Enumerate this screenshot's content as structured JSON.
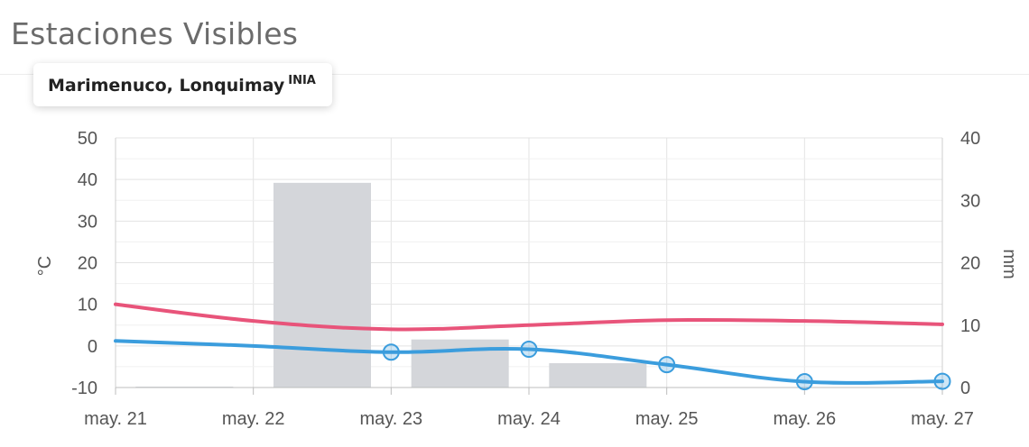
{
  "header": {
    "title": "Estaciones Visibles"
  },
  "station": {
    "name": "Marimenuco, Lonquimay",
    "source": "INIA"
  },
  "chart_data": {
    "type": "line",
    "categories": [
      "may. 21",
      "may. 22",
      "may. 23",
      "may. 24",
      "may. 25",
      "may. 26",
      "may. 27"
    ],
    "y_left": {
      "label": "°C",
      "ylim": [
        -10,
        50
      ],
      "ticks": [
        50,
        40,
        30,
        20,
        10,
        0,
        -10
      ]
    },
    "y_right": {
      "label": "mm",
      "ylim": [
        0,
        40
      ],
      "ticks": [
        40,
        30,
        20,
        10,
        0
      ]
    },
    "grid": true,
    "series": [
      {
        "kind": "bar",
        "axis": "right",
        "color": "#d4d6da",
        "values": [
          0,
          32.8,
          7.7,
          3.9,
          null,
          null,
          null
        ]
      },
      {
        "kind": "line",
        "axis": "left",
        "color": "#e8547a",
        "values": [
          10,
          6,
          4,
          5,
          6.2,
          6,
          5.2
        ]
      },
      {
        "kind": "line",
        "axis": "left",
        "color": "#3b9ddd",
        "markers": [
          false,
          false,
          true,
          true,
          true,
          true,
          true
        ],
        "values": [
          1.2,
          0,
          -1.5,
          -0.8,
          -4.5,
          -8.6,
          -8.5
        ]
      }
    ]
  }
}
